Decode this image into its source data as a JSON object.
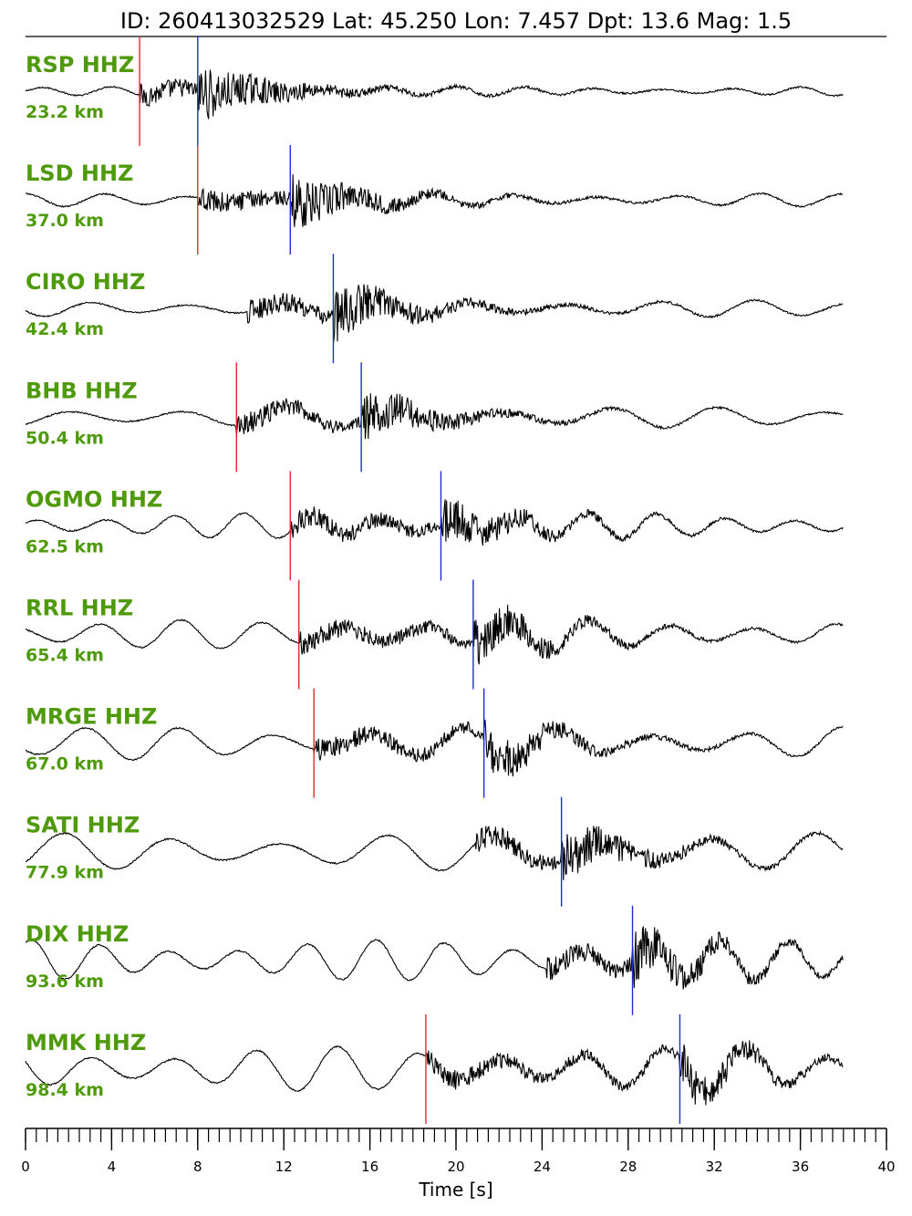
{
  "title": "ID: 260413032529 Lat:  45.250 Lon:   7.457 Dpt:    13.6 Mag:   1.5",
  "colors": {
    "label": "#4f9a0b",
    "p_pick": "#e8262d",
    "s_pick": "#1f2bd6",
    "trace": "#000000"
  },
  "chart_data": {
    "type": "line",
    "xlabel": "Time [s]",
    "xlim": [
      0,
      40
    ],
    "x_ticks": [
      0,
      4,
      8,
      12,
      16,
      20,
      24,
      28,
      32,
      36,
      40
    ],
    "minor_tick_step": 0.5,
    "traces": [
      {
        "station": "RSP HHZ",
        "distance": "23.2 km",
        "p_pick": 5.3,
        "s_pick": 8.0,
        "trace_end": 38.0
      },
      {
        "station": "LSD HHZ",
        "distance": "37.0 km",
        "p_pick": 8.0,
        "s_pick": 12.3,
        "trace_end": 38.0
      },
      {
        "station": "CIRO HHZ",
        "distance": "42.4 km",
        "p_pick": null,
        "s_pick": 14.3,
        "trace_end": 38.0
      },
      {
        "station": "BHB HHZ",
        "distance": "50.4 km",
        "p_pick": 9.8,
        "s_pick": 15.6,
        "trace_end": 38.0
      },
      {
        "station": "OGMO HHZ",
        "distance": "62.5 km",
        "p_pick": 12.3,
        "s_pick": 19.3,
        "trace_end": 38.0
      },
      {
        "station": "RRL HHZ",
        "distance": "65.4 km",
        "p_pick": 12.7,
        "s_pick": 20.8,
        "trace_end": 38.0
      },
      {
        "station": "MRGE HHZ",
        "distance": "67.0 km",
        "p_pick": 13.4,
        "s_pick": 21.3,
        "trace_end": 38.0
      },
      {
        "station": "SATI HHZ",
        "distance": "77.9 km",
        "p_pick": null,
        "s_pick": 24.9,
        "trace_end": 38.0
      },
      {
        "station": "DIX HHZ",
        "distance": "93.6 km",
        "p_pick": null,
        "s_pick": 28.2,
        "trace_end": 38.0
      },
      {
        "station": "MMK HHZ",
        "distance": "98.4 km",
        "p_pick": 18.6,
        "s_pick": 30.4,
        "trace_end": 38.0
      }
    ]
  }
}
